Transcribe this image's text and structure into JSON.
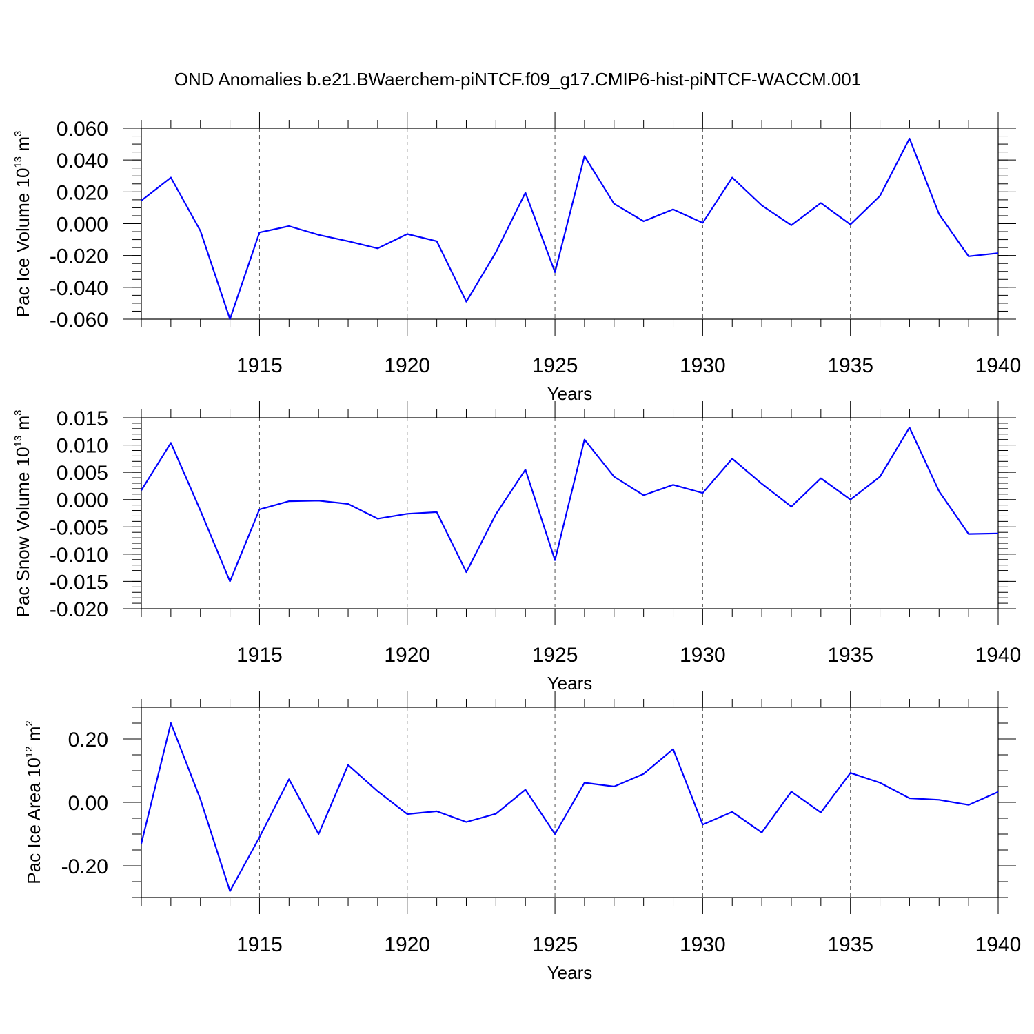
{
  "title": "OND Anomalies b.e21.BWaerchem-piNTCF.f09_g17.CMIP6-hist-piNTCF-WACCM.001",
  "line_color": "#0000ff",
  "chart_data": [
    {
      "type": "line",
      "name": "ice-volume",
      "ylabel_main": "Pac Ice Volume 10",
      "ylabel_exp": "13",
      "ylabel_unit": " m",
      "ylabel_unit_exp": "3",
      "xlabel": "Years",
      "xlim": [
        1911,
        1940
      ],
      "ylim": [
        -0.06,
        0.06
      ],
      "yticks": [
        -0.06,
        -0.04,
        -0.02,
        0.0,
        0.02,
        0.04,
        0.06
      ],
      "ytick_labels": [
        "-0.060",
        "-0.040",
        "-0.020",
        "0.000",
        "0.020",
        "0.040",
        "0.060"
      ],
      "yminor_step": 0.005,
      "xticks": [
        1915,
        1920,
        1925,
        1930,
        1935,
        1940
      ],
      "xtick_labels": [
        "1915",
        "1920",
        "1925",
        "1930",
        "1935",
        "1940"
      ],
      "x": [
        1911,
        1912,
        1913,
        1914,
        1915,
        1916,
        1917,
        1918,
        1919,
        1920,
        1921,
        1922,
        1923,
        1924,
        1925,
        1926,
        1927,
        1928,
        1929,
        1930,
        1931,
        1932,
        1933,
        1934,
        1935,
        1936,
        1937,
        1938,
        1939,
        1940
      ],
      "y": [
        0.0145,
        0.029,
        -0.0045,
        -0.06,
        -0.0055,
        -0.0015,
        -0.007,
        -0.011,
        -0.0155,
        -0.0065,
        -0.011,
        -0.049,
        -0.018,
        0.0195,
        -0.0305,
        0.0425,
        0.0125,
        0.0015,
        0.009,
        0.0005,
        0.029,
        0.0115,
        -0.001,
        0.013,
        -0.0005,
        0.0175,
        0.0535,
        0.006,
        -0.0205,
        -0.0185
      ]
    },
    {
      "type": "line",
      "name": "snow-volume",
      "ylabel_main": "Pac Snow Volume 10",
      "ylabel_exp": "13",
      "ylabel_unit": " m",
      "ylabel_unit_exp": "3",
      "xlabel": "Years",
      "xlim": [
        1911,
        1940
      ],
      "ylim": [
        -0.02,
        0.015
      ],
      "yticks": [
        -0.02,
        -0.015,
        -0.01,
        -0.005,
        0.0,
        0.005,
        0.01,
        0.015
      ],
      "ytick_labels": [
        "-0.020",
        "-0.015",
        "-0.010",
        "-0.005",
        "0.000",
        "0.005",
        "0.010",
        "0.015"
      ],
      "yminor_step": 0.001,
      "xticks": [
        1915,
        1920,
        1925,
        1930,
        1935,
        1940
      ],
      "xtick_labels": [
        "1915",
        "1920",
        "1925",
        "1930",
        "1935",
        "1940"
      ],
      "x": [
        1911,
        1912,
        1913,
        1914,
        1915,
        1916,
        1917,
        1918,
        1919,
        1920,
        1921,
        1922,
        1923,
        1924,
        1925,
        1926,
        1927,
        1928,
        1929,
        1930,
        1931,
        1932,
        1933,
        1934,
        1935,
        1936,
        1937,
        1938,
        1939,
        1940
      ],
      "y": [
        0.0017,
        0.0104,
        -0.002,
        -0.015,
        -0.0018,
        -0.0003,
        -0.0002,
        -0.0008,
        -0.0035,
        -0.0026,
        -0.0023,
        -0.0133,
        -0.0027,
        0.0055,
        -0.0111,
        0.011,
        0.0042,
        0.0008,
        0.0027,
        0.0012,
        0.0075,
        0.0029,
        -0.0013,
        0.0039,
        0.0,
        0.0042,
        0.0132,
        0.0015,
        -0.0063,
        -0.0062
      ]
    },
    {
      "type": "line",
      "name": "ice-area",
      "ylabel_main": "Pac Ice Area 10",
      "ylabel_exp": "12",
      "ylabel_unit": " m",
      "ylabel_unit_exp": "2",
      "xlabel": "Years",
      "xlim": [
        1911,
        1940
      ],
      "ylim": [
        -0.3,
        0.3
      ],
      "yticks": [
        -0.2,
        0.0,
        0.2
      ],
      "ytick_labels": [
        "-0.20",
        "0.00",
        "0.20"
      ],
      "yminor_step": 0.05,
      "xticks": [
        1915,
        1920,
        1925,
        1930,
        1935,
        1940
      ],
      "xtick_labels": [
        "1915",
        "1920",
        "1925",
        "1930",
        "1935",
        "1940"
      ],
      "x": [
        1911,
        1912,
        1913,
        1914,
        1915,
        1916,
        1917,
        1918,
        1919,
        1920,
        1921,
        1922,
        1923,
        1924,
        1925,
        1926,
        1927,
        1928,
        1929,
        1930,
        1931,
        1932,
        1933,
        1934,
        1935,
        1936,
        1937,
        1938,
        1939,
        1940
      ],
      "y": [
        -0.13,
        0.25,
        0.01,
        -0.28,
        -0.11,
        0.073,
        -0.1,
        0.118,
        0.035,
        -0.037,
        -0.028,
        -0.062,
        -0.036,
        0.04,
        -0.1,
        0.062,
        0.05,
        0.09,
        0.168,
        -0.07,
        -0.03,
        -0.095,
        0.034,
        -0.032,
        0.093,
        0.062,
        0.013,
        0.008,
        -0.008,
        0.033
      ]
    }
  ]
}
